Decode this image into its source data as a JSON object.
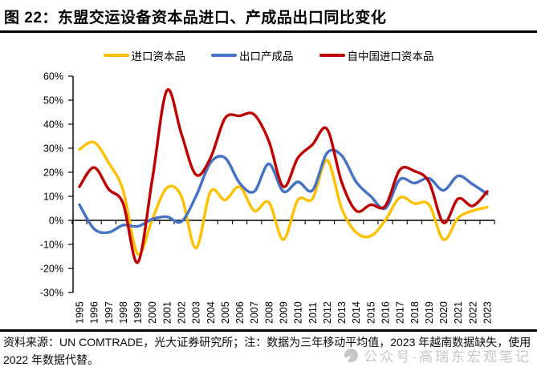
{
  "figure": {
    "title": "图 22：东盟交运设备资本品进口、产成品出口同比变化",
    "source_note": "资料来源：UN COMTRADE，光大证券研究所；注：数据为三年移动平均值，2023 年越南数据缺失，使用 2022 年数据代替。",
    "watermark": "公众号·高瑞东宏观笔记"
  },
  "chart_data": {
    "type": "line",
    "title": "东盟交运设备资本品进口、产成品出口同比变化",
    "x": [
      1995,
      1996,
      1997,
      1998,
      1999,
      2000,
      2001,
      2002,
      2003,
      2004,
      2005,
      2006,
      2007,
      2008,
      2009,
      2010,
      2011,
      2012,
      2013,
      2014,
      2015,
      2016,
      2017,
      2018,
      2019,
      2020,
      2021,
      2022,
      2023
    ],
    "series": [
      {
        "name": "进口资本品",
        "key": "imports-capital-goods",
        "color": "#FFC000",
        "values": [
          29.5,
          32.5,
          24,
          12.5,
          -14,
          0.5,
          13.5,
          10,
          -11.5,
          12,
          8.5,
          14,
          4,
          7.5,
          -8,
          8.5,
          9,
          25,
          5,
          -5,
          -6.5,
          0,
          9.5,
          7,
          6.5,
          -8,
          1,
          4,
          5.5
        ]
      },
      {
        "name": "出口产成品",
        "key": "exports-finished-goods",
        "color": "#4472C4",
        "values": [
          6.5,
          -3.5,
          -5,
          -2,
          -2.5,
          0.5,
          1.5,
          -0.5,
          10,
          24,
          26,
          15.5,
          12,
          23.5,
          12,
          16,
          12.5,
          28,
          27,
          16,
          10,
          5,
          17,
          15.5,
          17.5,
          12.5,
          18.5,
          15,
          11
        ]
      },
      {
        "name": "自中国进口资本品",
        "key": "imports-capital-from-china",
        "color": "#C00000",
        "values": [
          14,
          22,
          13,
          7,
          -17.5,
          17,
          54,
          36,
          19,
          26,
          42.5,
          43.5,
          44,
          33,
          14,
          26,
          31.5,
          38,
          16,
          4,
          6.5,
          6,
          21,
          20.5,
          16,
          -1,
          9,
          6,
          12
        ]
      }
    ],
    "ylim": [
      -30,
      60
    ],
    "yticks": [
      60,
      50,
      40,
      30,
      20,
      10,
      0,
      -10,
      -20,
      -30
    ],
    "ytick_format": "percent",
    "xlabel": "",
    "ylabel": "",
    "grid": false,
    "legend_position": "top",
    "axis_color": "#000000"
  }
}
